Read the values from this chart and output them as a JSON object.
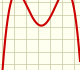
{
  "background_color": "#fffff0",
  "grid_color": "#c8c8a0",
  "curve_color": "#cc0000",
  "curve_linewidth": 1.5,
  "xlim": [
    -3.2,
    3.5
  ],
  "ylim": [
    -2.5,
    3.2
  ],
  "figsize": [
    0.8,
    0.7
  ],
  "dpi": 100,
  "x_nodes": [
    -2.5,
    -1.0,
    0.0,
    1.5,
    3.0
  ],
  "y_nodes": [
    2.0,
    2.8,
    1.2,
    2.8,
    2.5
  ],
  "num_points": 500,
  "grid_xticks": [
    -3,
    -2,
    -1,
    0,
    1,
    2,
    3
  ],
  "grid_yticks": [
    -2,
    -1,
    0,
    1,
    2,
    3
  ]
}
